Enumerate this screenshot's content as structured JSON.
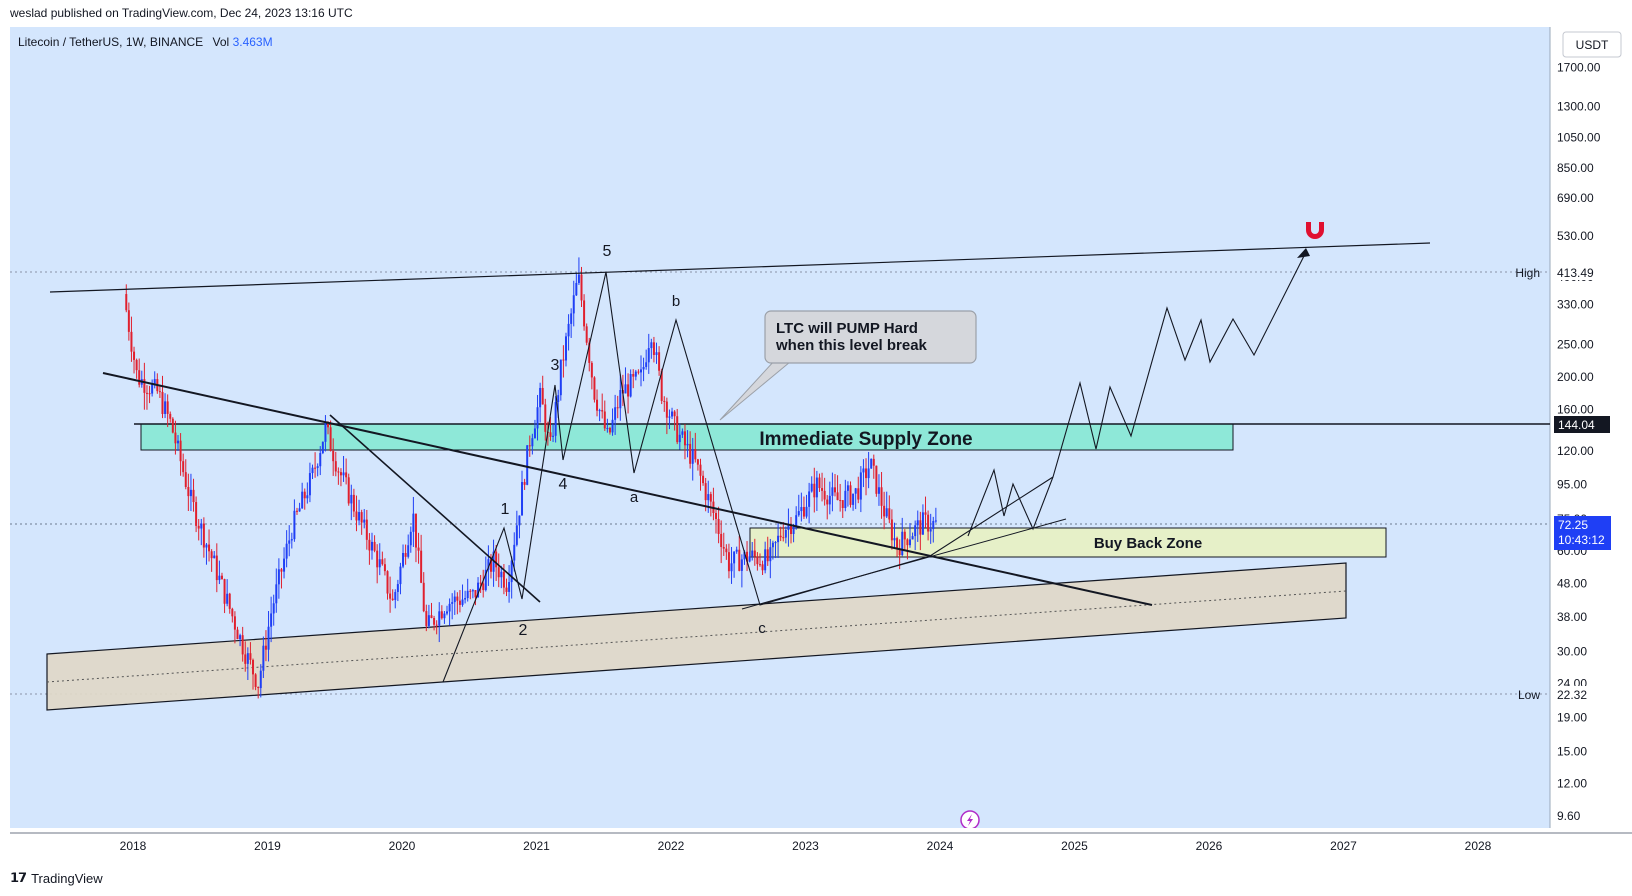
{
  "header": {
    "published": "weslad published on TradingView.com, Dec 24, 2023 13:16 UTC"
  },
  "symbol_line": {
    "name": "Litecoin / TetherUS, 1W, BINANCE",
    "vol_label": "Vol",
    "vol_value": "3.463M"
  },
  "currency_button": "USDT",
  "footer": {
    "brand": "TradingView"
  },
  "colors": {
    "background": "#d4e6fd",
    "up": "#1f3ff5",
    "down": "#e0202e",
    "supply_zone": "#8ee8d8",
    "buyback_zone": "#e6f0c8",
    "channel_fill": "#e0d8c8",
    "magnet": "#e01030"
  },
  "chart_data": {
    "type": "line",
    "title": "",
    "x_axis": {
      "ticks": [
        "2018",
        "2019",
        "2020",
        "2021",
        "2022",
        "2023",
        "2024",
        "2025",
        "2026",
        "2027",
        "2028"
      ]
    },
    "y_axis": {
      "scale": "log",
      "ticks": [
        "1700.00",
        "1300.00",
        "1050.00",
        "850.00",
        "690.00",
        "530.00",
        "330.00",
        "250.00",
        "200.00",
        "160.00",
        "120.00",
        "95.00",
        "60.00",
        "48.00",
        "38.00",
        "30.00",
        "19.00",
        "15.00",
        "12.00",
        "9.60"
      ],
      "partial_ticks": [
        "400.00",
        "24.00",
        "75.00"
      ]
    },
    "price_path": [
      {
        "t": 2017.95,
        "p": 355
      },
      {
        "t": 2018.05,
        "p": 200
      },
      {
        "t": 2018.2,
        "p": 180
      },
      {
        "t": 2018.3,
        "p": 145
      },
      {
        "t": 2018.45,
        "p": 85
      },
      {
        "t": 2018.6,
        "p": 58
      },
      {
        "t": 2018.85,
        "p": 30
      },
      {
        "t": 2018.95,
        "p": 24
      },
      {
        "t": 2019.05,
        "p": 40
      },
      {
        "t": 2019.2,
        "p": 70
      },
      {
        "t": 2019.35,
        "p": 100
      },
      {
        "t": 2019.45,
        "p": 140
      },
      {
        "t": 2019.55,
        "p": 105
      },
      {
        "t": 2019.7,
        "p": 75
      },
      {
        "t": 2019.85,
        "p": 55
      },
      {
        "t": 2019.95,
        "p": 42
      },
      {
        "t": 2020.1,
        "p": 78
      },
      {
        "t": 2020.2,
        "p": 35
      },
      {
        "t": 2020.35,
        "p": 42
      },
      {
        "t": 2020.55,
        "p": 44
      },
      {
        "t": 2020.7,
        "p": 56
      },
      {
        "t": 2020.8,
        "p": 48
      },
      {
        "t": 2020.9,
        "p": 85
      },
      {
        "t": 2020.97,
        "p": 130
      },
      {
        "t": 2021.05,
        "p": 175
      },
      {
        "t": 2021.12,
        "p": 120
      },
      {
        "t": 2021.2,
        "p": 210
      },
      {
        "t": 2021.33,
        "p": 400
      },
      {
        "t": 2021.45,
        "p": 180
      },
      {
        "t": 2021.55,
        "p": 130
      },
      {
        "t": 2021.65,
        "p": 180
      },
      {
        "t": 2021.8,
        "p": 200
      },
      {
        "t": 2021.87,
        "p": 280
      },
      {
        "t": 2021.95,
        "p": 180
      },
      {
        "t": 2022.05,
        "p": 140
      },
      {
        "t": 2022.2,
        "p": 110
      },
      {
        "t": 2022.35,
        "p": 75
      },
      {
        "t": 2022.45,
        "p": 55
      },
      {
        "t": 2022.6,
        "p": 58
      },
      {
        "t": 2022.75,
        "p": 56
      },
      {
        "t": 2022.85,
        "p": 70
      },
      {
        "t": 2022.95,
        "p": 75
      },
      {
        "t": 2023.1,
        "p": 95
      },
      {
        "t": 2023.25,
        "p": 85
      },
      {
        "t": 2023.4,
        "p": 90
      },
      {
        "t": 2023.5,
        "p": 110
      },
      {
        "t": 2023.6,
        "p": 80
      },
      {
        "t": 2023.7,
        "p": 62
      },
      {
        "t": 2023.8,
        "p": 68
      },
      {
        "t": 2023.9,
        "p": 73
      },
      {
        "t": 2023.98,
        "p": 72.25
      }
    ],
    "levels": [
      {
        "label": "High",
        "value": "413.49"
      },
      {
        "label": "",
        "value": "144.04"
      },
      {
        "label": "",
        "value": "72.25",
        "countdown": "10:43:12"
      },
      {
        "label": "Low",
        "value": "22.32"
      }
    ],
    "annotations": {
      "waves": [
        "5",
        "3",
        "4",
        "1",
        "2",
        "b",
        "a",
        "c"
      ],
      "callout": [
        "LTC will PUMP Hard",
        "when this level break"
      ],
      "supply_zone": "Immediate Supply Zone",
      "buyback_zone": "Buy Back Zone"
    }
  }
}
